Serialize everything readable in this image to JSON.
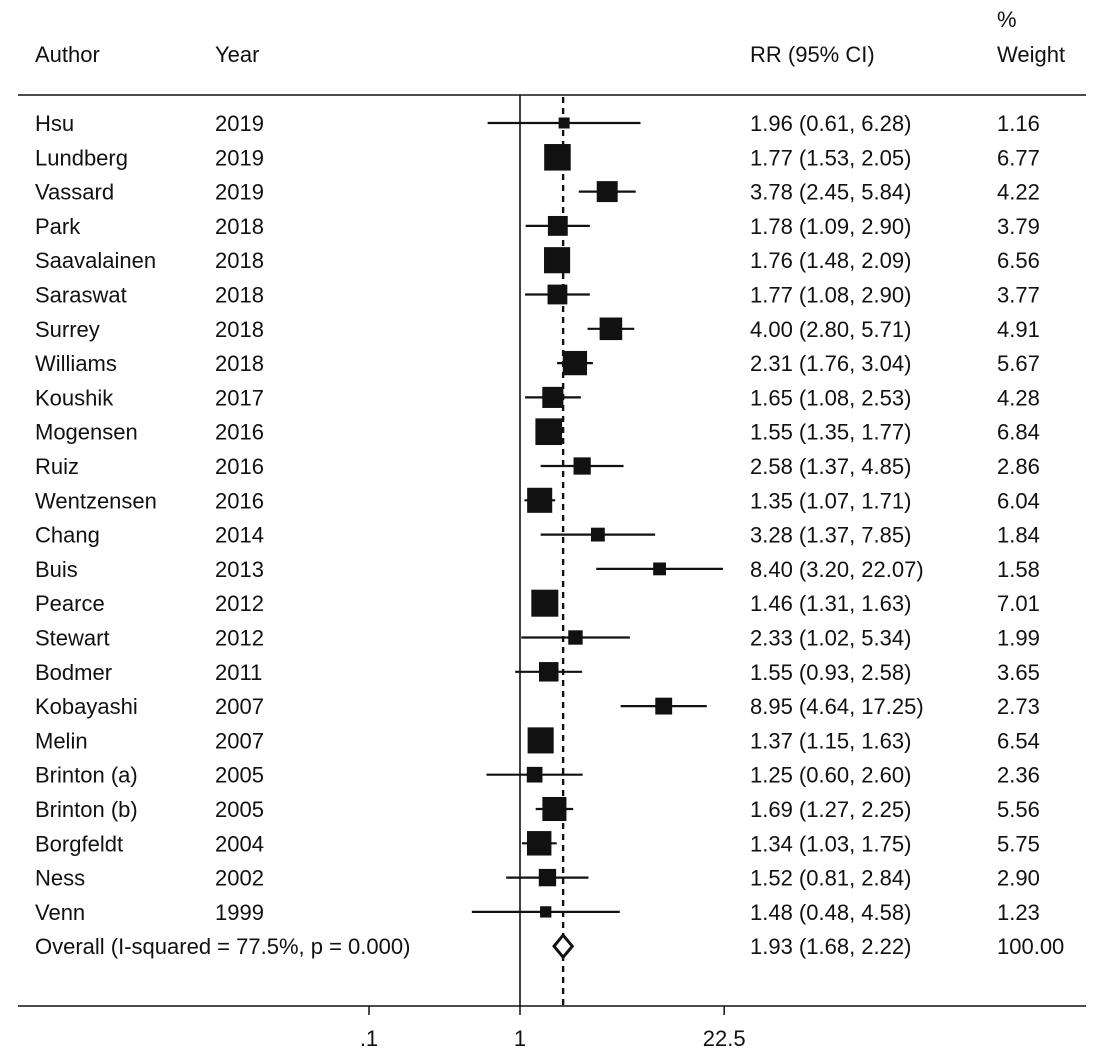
{
  "headers": {
    "author": "Author",
    "year": "Year",
    "rr": "RR (95% CI)",
    "weight_line1": "%",
    "weight_line2": "Weight"
  },
  "chart_data": {
    "type": "forest",
    "x_scale": "log",
    "null_line": 1,
    "overall_estimate": 1.93,
    "x_ticks": [
      {
        "value": 0.1,
        "label": ".1"
      },
      {
        "value": 1,
        "label": "1"
      },
      {
        "value": 22.5,
        "label": "22.5"
      }
    ],
    "studies": [
      {
        "author": "Hsu",
        "year": "2019",
        "rr": 1.96,
        "lo": 0.61,
        "hi": 6.28,
        "rr_text": "1.96 (0.61, 6.28)",
        "weight": 1.16,
        "weight_text": "1.16"
      },
      {
        "author": "Lundberg",
        "year": "2019",
        "rr": 1.77,
        "lo": 1.53,
        "hi": 2.05,
        "rr_text": "1.77 (1.53, 2.05)",
        "weight": 6.77,
        "weight_text": "6.77"
      },
      {
        "author": "Vassard",
        "year": "2019",
        "rr": 3.78,
        "lo": 2.45,
        "hi": 5.84,
        "rr_text": "3.78 (2.45, 5.84)",
        "weight": 4.22,
        "weight_text": "4.22"
      },
      {
        "author": "Park",
        "year": "2018",
        "rr": 1.78,
        "lo": 1.09,
        "hi": 2.9,
        "rr_text": "1.78 (1.09, 2.90)",
        "weight": 3.79,
        "weight_text": "3.79"
      },
      {
        "author": "Saavalainen",
        "year": "2018",
        "rr": 1.76,
        "lo": 1.48,
        "hi": 2.09,
        "rr_text": "1.76 (1.48, 2.09)",
        "weight": 6.56,
        "weight_text": "6.56"
      },
      {
        "author": "Saraswat",
        "year": "2018",
        "rr": 1.77,
        "lo": 1.08,
        "hi": 2.9,
        "rr_text": "1.77 (1.08, 2.90)",
        "weight": 3.77,
        "weight_text": "3.77"
      },
      {
        "author": "Surrey",
        "year": "2018",
        "rr": 4.0,
        "lo": 2.8,
        "hi": 5.71,
        "rr_text": "4.00 (2.80, 5.71)",
        "weight": 4.91,
        "weight_text": "4.91"
      },
      {
        "author": "Williams",
        "year": "2018",
        "rr": 2.31,
        "lo": 1.76,
        "hi": 3.04,
        "rr_text": "2.31 (1.76, 3.04)",
        "weight": 5.67,
        "weight_text": "5.67"
      },
      {
        "author": "Koushik",
        "year": "2017",
        "rr": 1.65,
        "lo": 1.08,
        "hi": 2.53,
        "rr_text": "1.65 (1.08, 2.53)",
        "weight": 4.28,
        "weight_text": "4.28"
      },
      {
        "author": "Mogensen",
        "year": "2016",
        "rr": 1.55,
        "lo": 1.35,
        "hi": 1.77,
        "rr_text": "1.55 (1.35, 1.77)",
        "weight": 6.84,
        "weight_text": "6.84"
      },
      {
        "author": "Ruiz",
        "year": "2016",
        "rr": 2.58,
        "lo": 1.37,
        "hi": 4.85,
        "rr_text": "2.58 (1.37, 4.85)",
        "weight": 2.86,
        "weight_text": "2.86"
      },
      {
        "author": "Wentzensen",
        "year": "2016",
        "rr": 1.35,
        "lo": 1.07,
        "hi": 1.71,
        "rr_text": "1.35 (1.07, 1.71)",
        "weight": 6.04,
        "weight_text": "6.04"
      },
      {
        "author": "Chang",
        "year": "2014",
        "rr": 3.28,
        "lo": 1.37,
        "hi": 7.85,
        "rr_text": "3.28 (1.37, 7.85)",
        "weight": 1.84,
        "weight_text": "1.84"
      },
      {
        "author": "Buis",
        "year": "2013",
        "rr": 8.4,
        "lo": 3.2,
        "hi": 22.07,
        "rr_text": "8.40 (3.20, 22.07)",
        "weight": 1.58,
        "weight_text": "1.58"
      },
      {
        "author": "Pearce",
        "year": "2012",
        "rr": 1.46,
        "lo": 1.31,
        "hi": 1.63,
        "rr_text": "1.46 (1.31, 1.63)",
        "weight": 7.01,
        "weight_text": "7.01"
      },
      {
        "author": "Stewart",
        "year": "2012",
        "rr": 2.33,
        "lo": 1.02,
        "hi": 5.34,
        "rr_text": "2.33 (1.02, 5.34)",
        "weight": 1.99,
        "weight_text": "1.99"
      },
      {
        "author": "Bodmer",
        "year": "2011",
        "rr": 1.55,
        "lo": 0.93,
        "hi": 2.58,
        "rr_text": "1.55 (0.93, 2.58)",
        "weight": 3.65,
        "weight_text": "3.65"
      },
      {
        "author": "Kobayashi",
        "year": "2007",
        "rr": 8.95,
        "lo": 4.64,
        "hi": 17.25,
        "rr_text": "8.95 (4.64, 17.25)",
        "weight": 2.73,
        "weight_text": "2.73"
      },
      {
        "author": "Melin",
        "year": "2007",
        "rr": 1.37,
        "lo": 1.15,
        "hi": 1.63,
        "rr_text": "1.37 (1.15, 1.63)",
        "weight": 6.54,
        "weight_text": "6.54"
      },
      {
        "author": "Brinton (a)",
        "year": "2005",
        "rr": 1.25,
        "lo": 0.6,
        "hi": 2.6,
        "rr_text": "1.25 (0.60, 2.60)",
        "weight": 2.36,
        "weight_text": "2.36"
      },
      {
        "author": "Brinton (b)",
        "year": "2005",
        "rr": 1.69,
        "lo": 1.27,
        "hi": 2.25,
        "rr_text": "1.69 (1.27, 2.25)",
        "weight": 5.56,
        "weight_text": "5.56"
      },
      {
        "author": "Borgfeldt",
        "year": "2004",
        "rr": 1.34,
        "lo": 1.03,
        "hi": 1.75,
        "rr_text": "1.34 (1.03, 1.75)",
        "weight": 5.75,
        "weight_text": "5.75"
      },
      {
        "author": "Ness",
        "year": "2002",
        "rr": 1.52,
        "lo": 0.81,
        "hi": 2.84,
        "rr_text": "1.52 (0.81, 2.84)",
        "weight": 2.9,
        "weight_text": "2.90"
      },
      {
        "author": "Venn",
        "year": "1999",
        "rr": 1.48,
        "lo": 0.48,
        "hi": 4.58,
        "rr_text": "1.48 (0.48, 4.58)",
        "weight": 1.23,
        "weight_text": "1.23"
      }
    ],
    "overall": {
      "label": "Overall  (I-squared = 77.5%, p = 0.000)",
      "rr": 1.93,
      "lo": 1.68,
      "hi": 2.22,
      "rr_text": "1.93 (1.68, 2.22)",
      "weight": 100.0,
      "weight_text": "100.00"
    }
  }
}
